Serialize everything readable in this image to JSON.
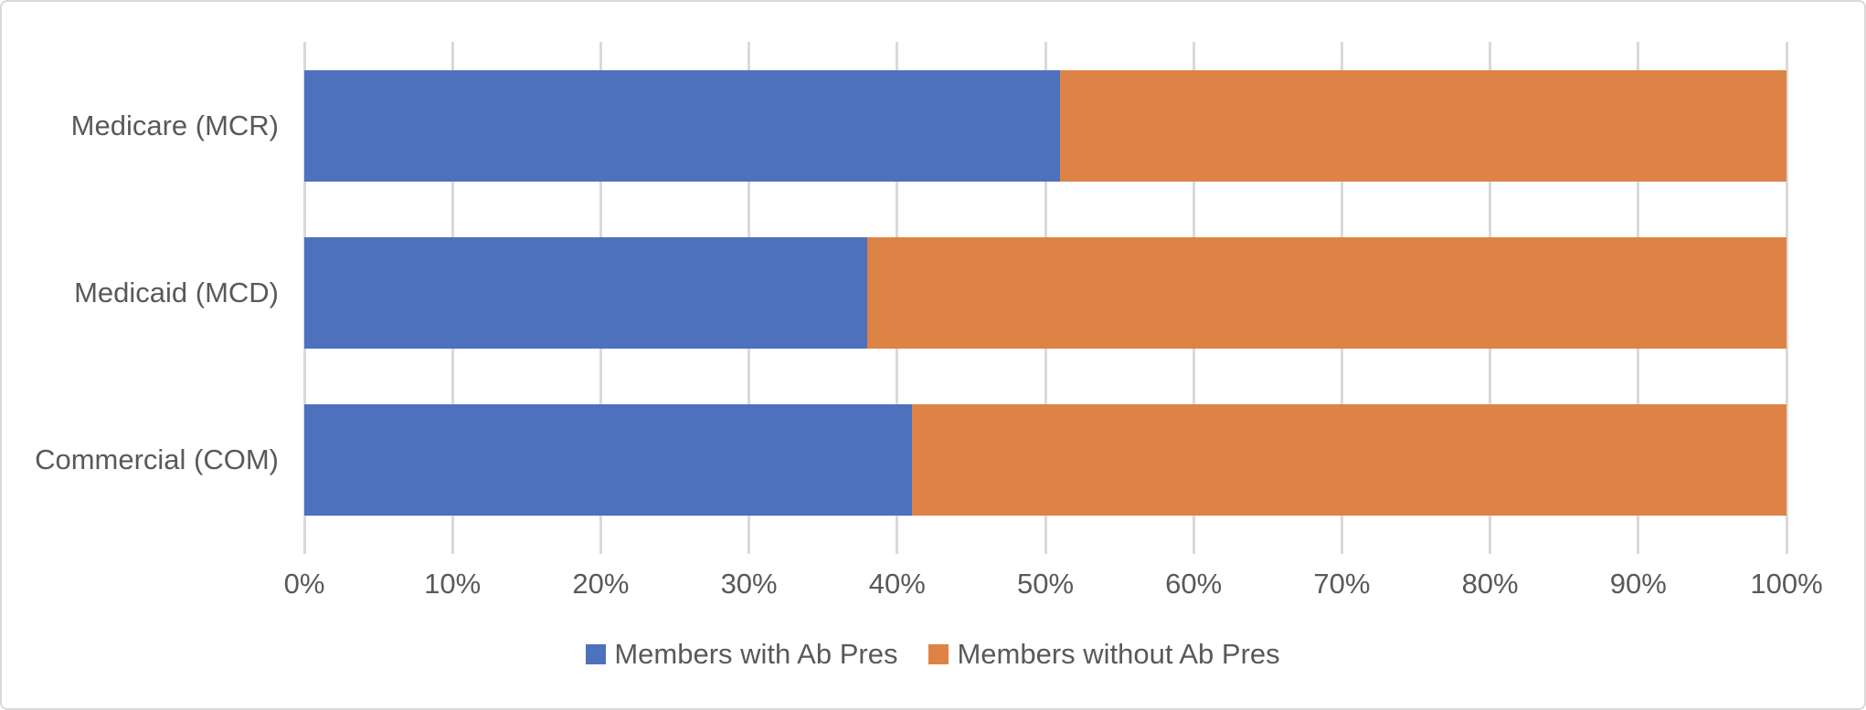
{
  "chart_data": {
    "type": "bar",
    "orientation": "horizontal",
    "stacked": true,
    "percent_stacked": true,
    "title": "",
    "xlabel": "",
    "ylabel": "",
    "xlim": [
      0,
      100
    ],
    "x_tick_step": 10,
    "x_ticks": [
      "0%",
      "10%",
      "20%",
      "30%",
      "40%",
      "50%",
      "60%",
      "70%",
      "80%",
      "90%",
      "100%"
    ],
    "categories": [
      "Medicare (MCR)",
      "Medicaid (MCD)",
      "Commercial (COM)"
    ],
    "series": [
      {
        "name": "Members with Ab Pres",
        "color": "#4e71bd",
        "values": [
          51,
          38,
          41
        ]
      },
      {
        "name": "Members without Ab Pres",
        "color": "#dd8345",
        "values": [
          49,
          62,
          59
        ]
      }
    ],
    "grid": true,
    "gridline_color": "#d9d9d9",
    "legend_position": "bottom"
  },
  "colors": {
    "frame_border": "#d9d9d9",
    "axis_text": "#595959",
    "background": "#ffffff"
  }
}
